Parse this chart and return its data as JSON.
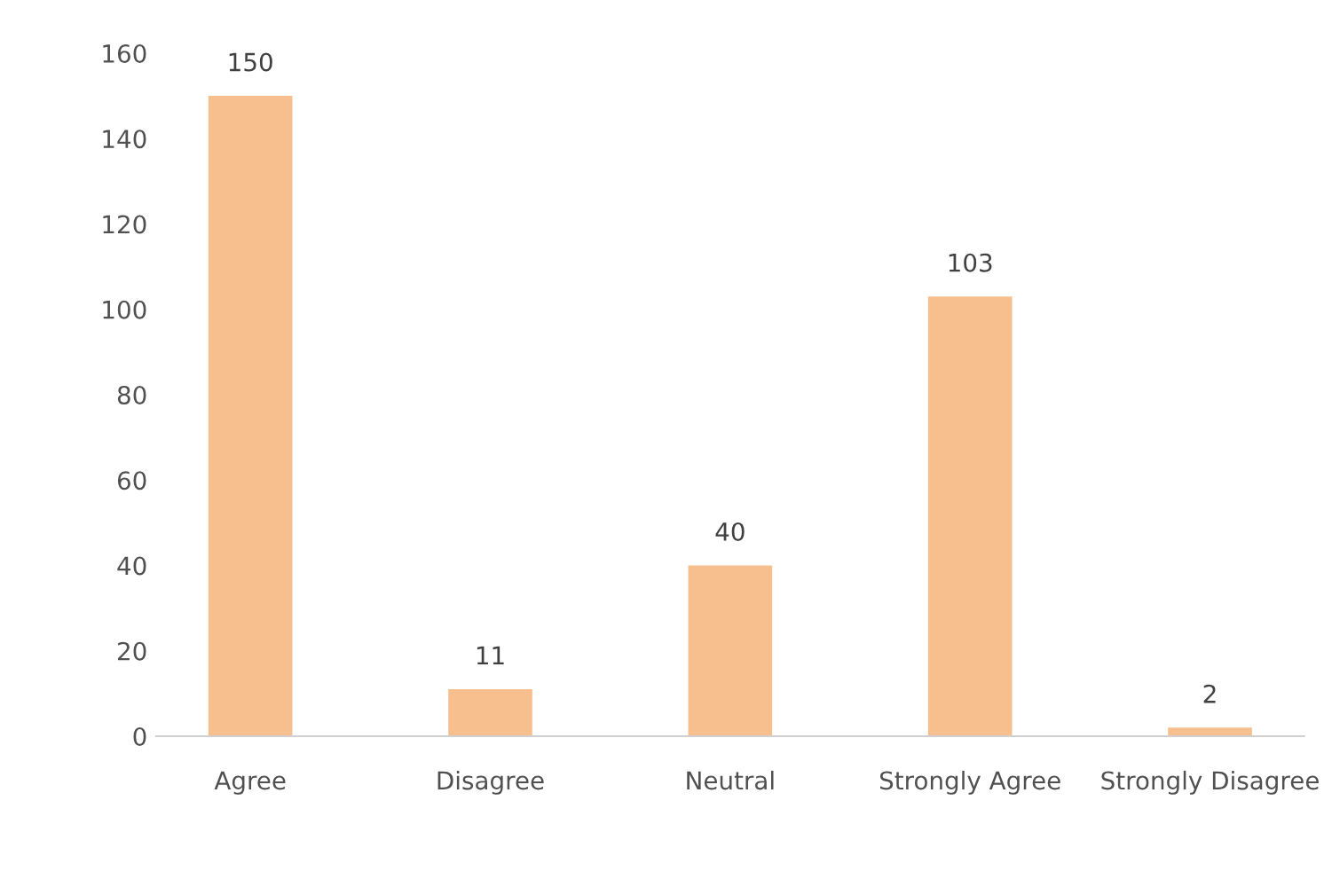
{
  "chart_data": {
    "type": "bar",
    "categories": [
      "Agree",
      "Disagree",
      "Neutral",
      "Strongly Agree",
      "Strongly Disagree"
    ],
    "values": [
      150,
      11,
      40,
      103,
      2
    ],
    "color": "#f8bf8e",
    "ylim": [
      0,
      160
    ],
    "yticks": [
      0,
      20,
      40,
      60,
      80,
      100,
      120,
      140,
      160
    ],
    "grid": false,
    "data_labels": true
  }
}
